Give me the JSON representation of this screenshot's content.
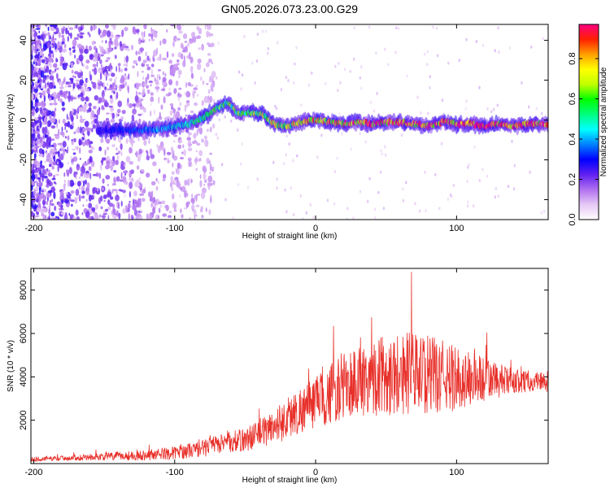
{
  "title": "GN05.2026.073.23.00.G29",
  "chart_data": [
    {
      "type": "heatmap",
      "xlabel": "Height of straight line (km)",
      "ylabel": "Frequency (Hz)",
      "xlim": [
        -202,
        165
      ],
      "ylim": [
        -50,
        48
      ],
      "xticks": [
        -200,
        -100,
        0,
        100
      ],
      "yticks": [
        -40,
        -20,
        0,
        20,
        40
      ],
      "colorbar": {
        "label": "Normalized spectral amplitude",
        "range": [
          0,
          0.97
        ],
        "ticks": [
          0.0,
          0.2,
          0.4,
          0.6,
          0.8
        ],
        "colors": [
          "#ffffff",
          "#e6c8f5",
          "#b070f0",
          "#6020f0",
          "#0000ff",
          "#0080ff",
          "#00ffff",
          "#00ff80",
          "#00ff00",
          "#c0ff00",
          "#ffff00",
          "#ffa000",
          "#ff2000",
          "#ff0080"
        ]
      },
      "ridge": {
        "x": [
          -155,
          -140,
          -120,
          -105,
          -90,
          -80,
          -70,
          -62,
          -55,
          -45,
          -38,
          -30,
          -20,
          -10,
          0,
          10,
          20,
          30,
          40,
          50,
          60,
          70,
          80,
          90,
          100,
          110,
          120,
          130,
          140,
          150,
          160
        ],
        "y": [
          -5,
          -5,
          -5,
          -4,
          -2,
          1,
          6,
          9,
          3,
          4,
          3,
          -2,
          -3,
          -1,
          0,
          -1,
          -2,
          -1,
          -2,
          -1,
          -1,
          -2,
          -3,
          -1,
          -2,
          -2,
          -3,
          -2,
          -3,
          -2,
          -2
        ]
      }
    },
    {
      "type": "line",
      "xlabel": "Height of straight line (km)",
      "ylabel": "SNR (10 * v/v)",
      "xlim": [
        -202,
        165
      ],
      "ylim": [
        0,
        9000
      ],
      "xticks": [
        -200,
        -100,
        0,
        100
      ],
      "yticks": [
        2000,
        4000,
        6000,
        8000
      ],
      "color": "#e8302a",
      "envelope": {
        "x": [
          -202,
          -180,
          -160,
          -140,
          -120,
          -100,
          -90,
          -80,
          -70,
          -60,
          -50,
          -40,
          -30,
          -20,
          -10,
          0,
          10,
          20,
          30,
          40,
          50,
          60,
          70,
          80,
          90,
          100,
          110,
          120,
          130,
          140,
          150,
          165
        ],
        "mean": [
          200,
          250,
          300,
          350,
          400,
          500,
          600,
          700,
          900,
          1000,
          1100,
          1400,
          1700,
          2100,
          2500,
          2800,
          3200,
          3600,
          3800,
          4000,
          4100,
          4200,
          4200,
          4100,
          4000,
          3900,
          3900,
          3900,
          3800,
          3800,
          3800,
          3800
        ],
        "spread": [
          100,
          120,
          150,
          200,
          250,
          300,
          350,
          400,
          450,
          500,
          550,
          700,
          800,
          1000,
          1100,
          1200,
          1400,
          1600,
          1700,
          1800,
          1900,
          2000,
          1900,
          1800,
          1700,
          1500,
          1300,
          1100,
          800,
          600,
          500,
          500
        ]
      }
    }
  ]
}
